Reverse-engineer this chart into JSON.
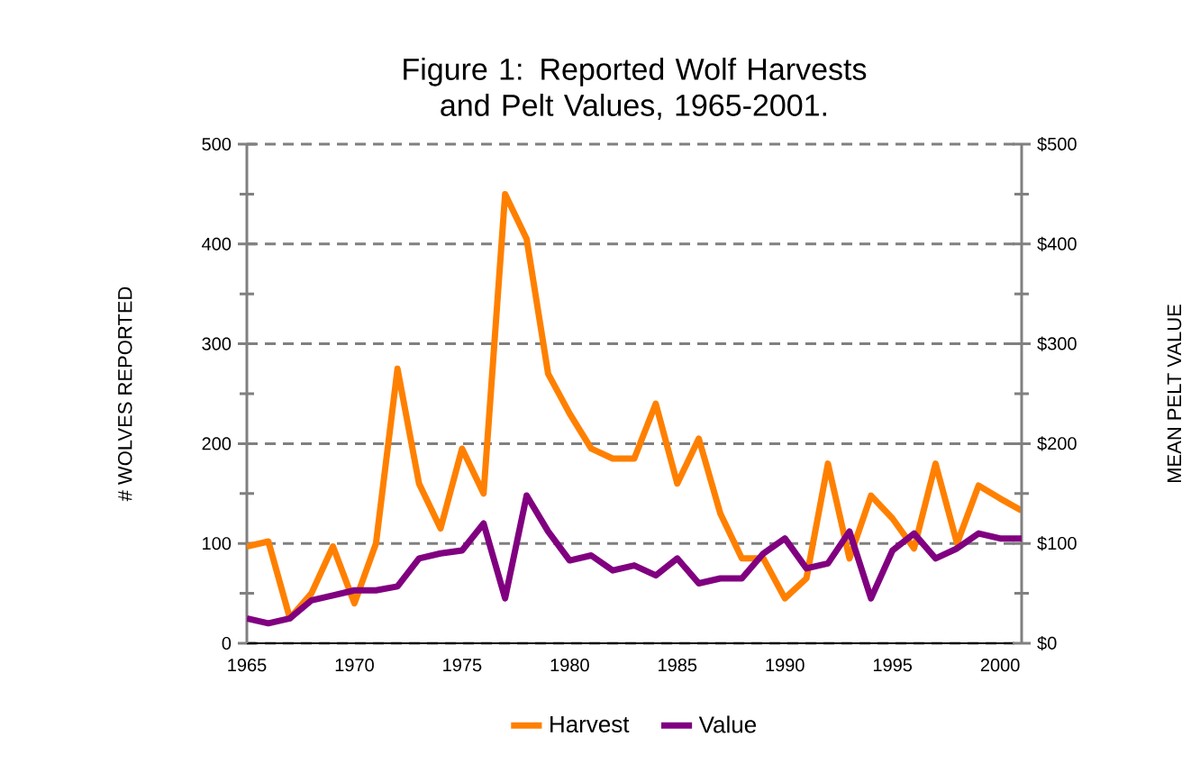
{
  "chart_data": {
    "type": "line",
    "title": "Figure 1: Reported Wolf Harvests and Pelt Values, 1965-2001.",
    "ylabel": "# WOLVES REPORTED",
    "y2label": "MEAN PELT VALUE",
    "x": [
      1965,
      1966,
      1967,
      1968,
      1969,
      1970,
      1971,
      1972,
      1973,
      1974,
      1975,
      1976,
      1977,
      1978,
      1979,
      1980,
      1981,
      1982,
      1983,
      1984,
      1985,
      1986,
      1987,
      1988,
      1989,
      1990,
      1991,
      1992,
      1993,
      1994,
      1995,
      1996,
      1997,
      1998,
      1999,
      2000,
      2001
    ],
    "series": [
      {
        "name": "Harvest",
        "color": "#ff8000",
        "values": [
          97,
          102,
          25,
          50,
          97,
          40,
          100,
          275,
          160,
          115,
          195,
          150,
          450,
          405,
          270,
          230,
          195,
          185,
          185,
          240,
          160,
          205,
          130,
          85,
          85,
          45,
          65,
          180,
          85,
          148,
          125,
          95,
          180,
          100,
          158,
          145,
          133
        ]
      },
      {
        "name": "Value",
        "color": "#800080",
        "axis": "y2",
        "values": [
          25,
          20,
          25,
          43,
          48,
          53,
          53,
          57,
          85,
          90,
          93,
          120,
          45,
          148,
          112,
          83,
          88,
          73,
          78,
          68,
          85,
          60,
          65,
          65,
          90,
          105,
          75,
          80,
          112,
          45,
          93,
          110,
          85,
          95,
          110,
          105,
          105
        ]
      }
    ],
    "xlim": [
      1965,
      2001
    ],
    "xticks": [
      1965,
      1970,
      1975,
      1980,
      1985,
      1990,
      1995,
      2000
    ],
    "ylim": [
      0,
      500
    ],
    "yticks": [
      0,
      100,
      200,
      300,
      400,
      500
    ],
    "y2lim": [
      0,
      500
    ],
    "y2ticks": [
      {
        "value": 0,
        "label": "$0"
      },
      {
        "value": 100,
        "label": "$100"
      },
      {
        "value": 200,
        "label": "$200"
      },
      {
        "value": 300,
        "label": "$300"
      },
      {
        "value": 400,
        "label": "$400"
      },
      {
        "value": 500,
        "label": "$500"
      }
    ],
    "grid": "y",
    "legend": "bottom",
    "line_style": "solid",
    "marker": "none"
  }
}
